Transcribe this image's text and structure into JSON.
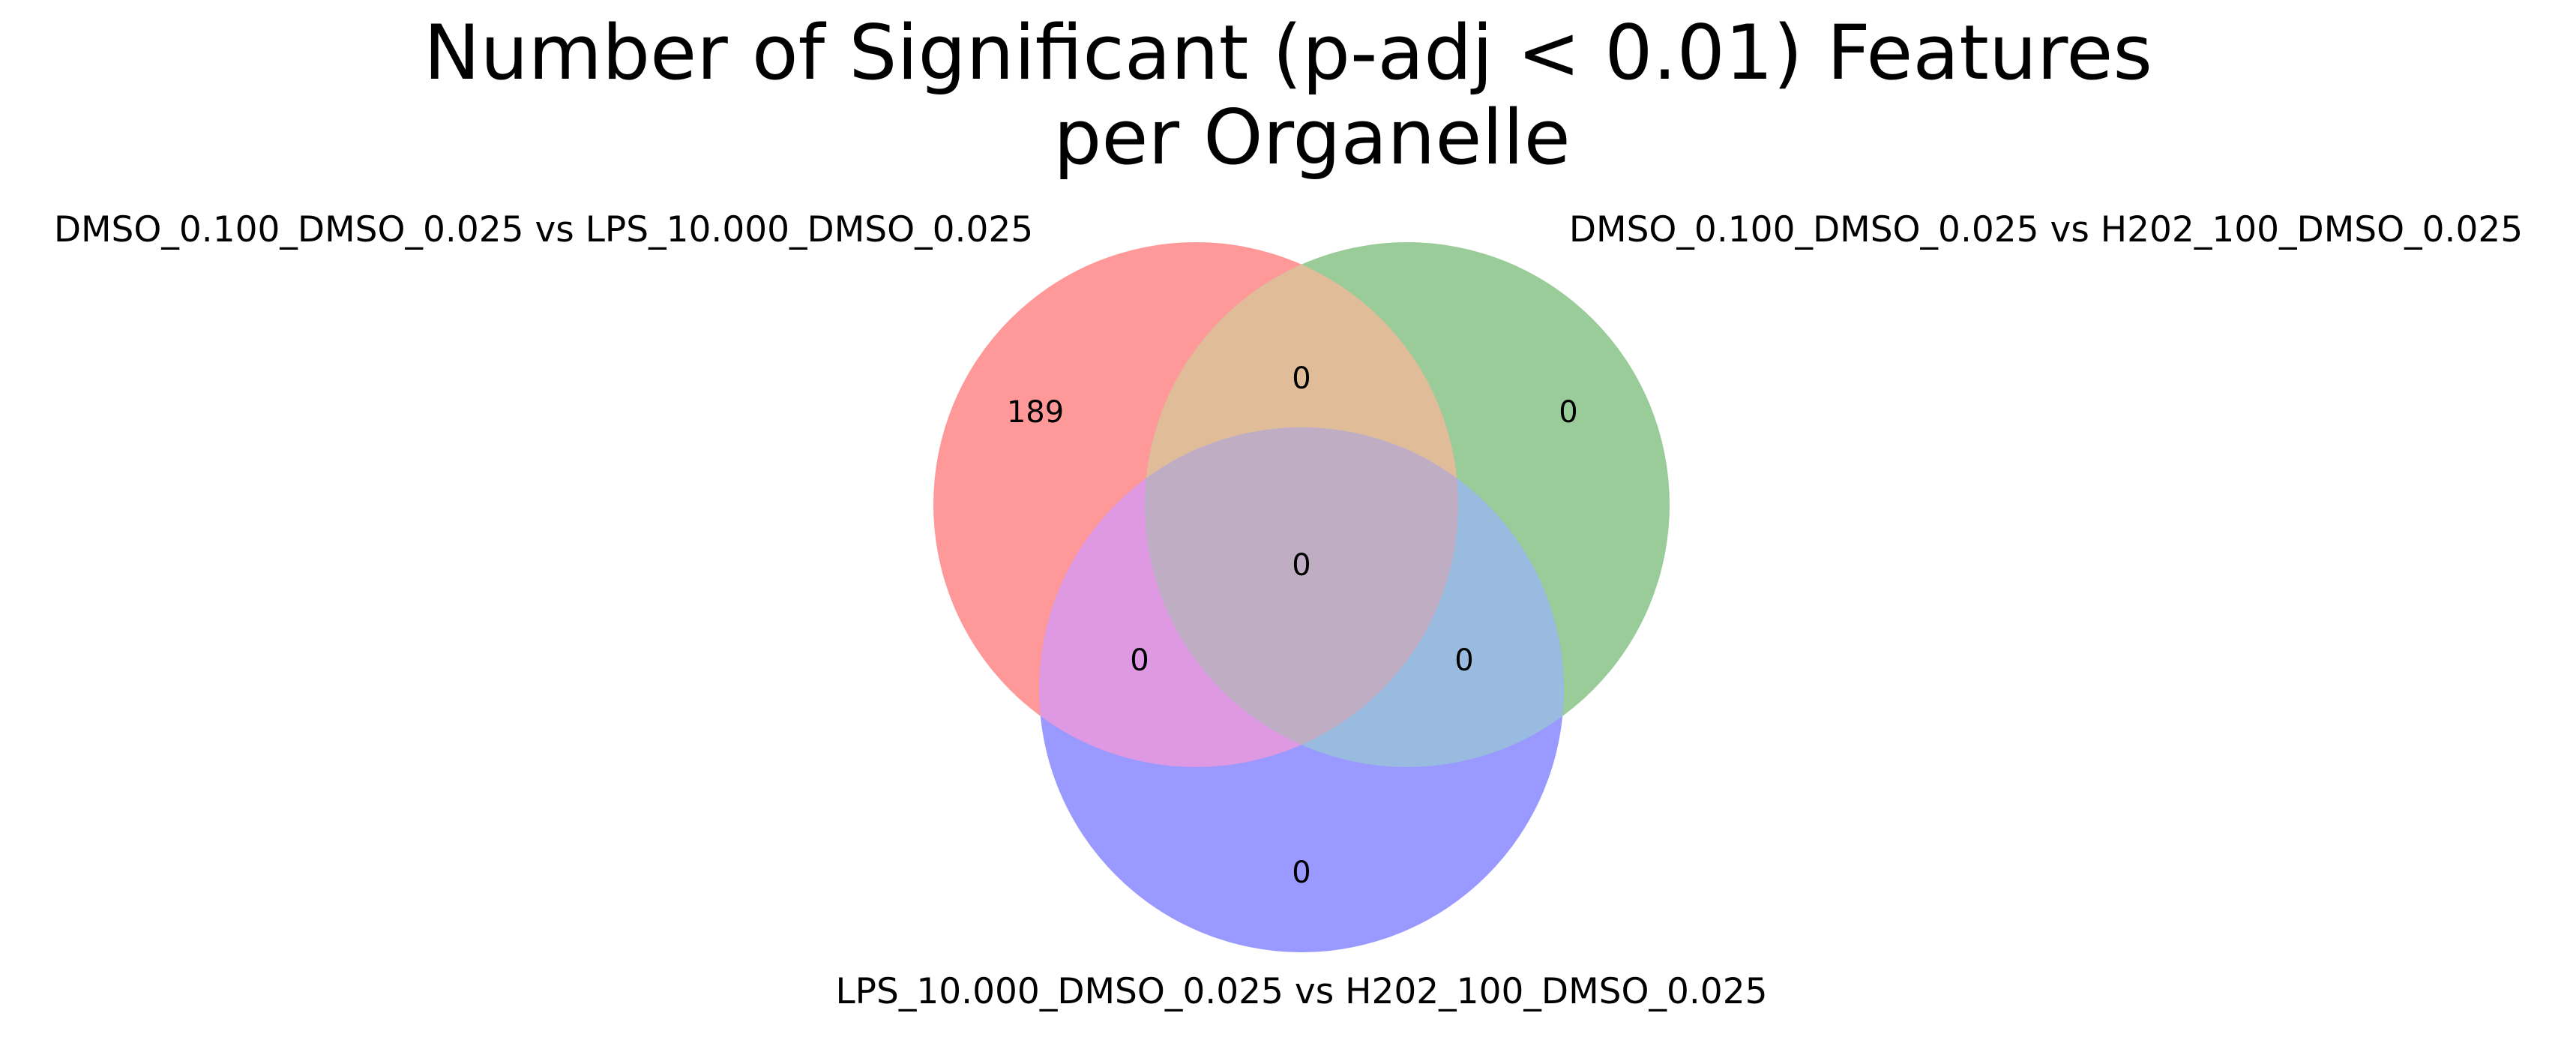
{
  "title": {
    "line1": "Number of Significant (p-adj < 0.01) Features",
    "line2": "per Organelle"
  },
  "sets": [
    {
      "label": "DMSO_0.100_DMSO_0.025 vs LPS_10.000_DMSO_0.025",
      "color": "#ff9999"
    },
    {
      "label": "DMSO_0.100_DMSO_0.025 vs H202_100_DMSO_0.025",
      "color": "#99cc99"
    },
    {
      "label": "LPS_10.000_DMSO_0.025 vs H202_100_DMSO_0.025",
      "color": "#9999ff"
    }
  ],
  "regions": {
    "only_set1": "189",
    "only_set2": "0",
    "only_set3": "0",
    "set1_set2": "0",
    "set1_set3": "0",
    "set2_set3": "0",
    "all_three": "0"
  }
}
